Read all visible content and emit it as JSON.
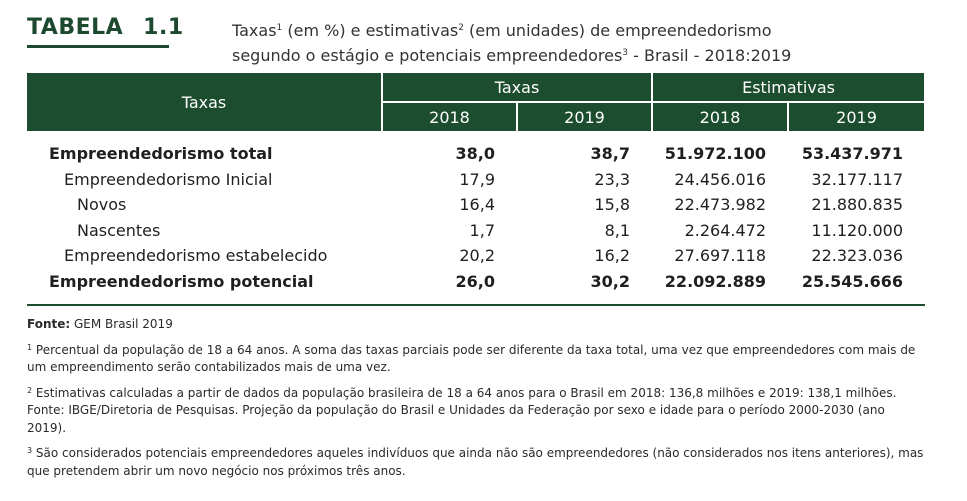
{
  "label": {
    "tabela": "TABELA",
    "number": "1.1"
  },
  "title": {
    "line1_a": "Taxas",
    "sup1": "1",
    "line1_b": " (em %) e estimativas",
    "sup2": "2",
    "line1_c": " (em unidades) de empreendedorismo",
    "line2_a": "segundo o estágio e potenciais empreendedores",
    "sup3": "3",
    "line2_b": " - Brasil - 2018:2019"
  },
  "table": {
    "row_header": "Taxas",
    "group_taxas": "Taxas",
    "group_estimativas": "Estimativas",
    "years": [
      "2018",
      "2019",
      "2018",
      "2019"
    ],
    "rows": [
      {
        "label": "Empreendedorismo total",
        "values": [
          "38,0",
          "38,7",
          "51.972.100",
          "53.437.971"
        ]
      },
      {
        "label": "Empreendedorismo Inicial",
        "values": [
          "17,9",
          "23,3",
          "24.456.016",
          "32.177.117"
        ]
      },
      {
        "label": "Novos",
        "values": [
          "16,4",
          "15,8",
          "22.473.982",
          "21.880.835"
        ]
      },
      {
        "label": "Nascentes",
        "values": [
          "1,7",
          "8,1",
          "2.264.472",
          "11.120.000"
        ]
      },
      {
        "label": "Empreendedorismo estabelecido",
        "values": [
          "20,2",
          "16,2",
          "27.697.118",
          "22.323.036"
        ]
      },
      {
        "label": "Empreendedorismo potencial",
        "values": [
          "26,0",
          "30,2",
          "22.092.889",
          "25.545.666"
        ]
      }
    ]
  },
  "notes": {
    "fonte_label": "Fonte:",
    "fonte_text": " GEM Brasil 2019",
    "n1_mark": "1",
    "n1": " Percentual da população de 18 a 64 anos. A soma das taxas parciais pode ser diferente da taxa total, uma vez que empreendedores com mais de um empreendimento serão contabilizados mais de uma vez.",
    "n2_mark": "2",
    "n2": " Estimativas calculadas a partir de dados da população brasileira de 18 a 64 anos para o Brasil em 2018: 136,8 milhões e 2019: 138,1 milhões. Fonte: IBGE/Diretoria de Pesquisas. Projeção da população do Brasil e Unidades da Federação por sexo e idade para o período 2000-2030 (ano 2019).",
    "n3_mark": "3",
    "n3": " São considerados potenciais empreendedores aqueles indivíduos que ainda não são empreendedores (não considerados nos itens anteriores), mas que pretendem abrir um novo negócio nos próximos três anos."
  },
  "colors": {
    "header_bg": "#1c4d2e",
    "label_green": "#1d4a2f"
  }
}
